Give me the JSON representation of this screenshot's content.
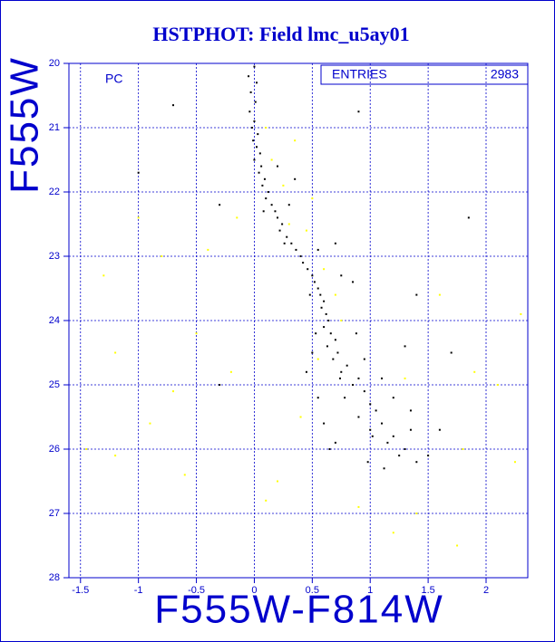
{
  "chart_data": {
    "type": "scatter",
    "title": "HSTPHOT: Field lmc_u5ay01",
    "x_label": "F555W-F814W",
    "y_label": "F555W",
    "annotation": "PC",
    "stats_box": {
      "label": "ENTRIES",
      "value": 2983
    },
    "xlim": [
      -1.6,
      2.36
    ],
    "ylim": [
      20,
      28
    ],
    "y_inverted": true,
    "grid": true,
    "xticks": [
      -1.5,
      -1,
      -0.5,
      0,
      0.5,
      1,
      1.5,
      2
    ],
    "yticks": [
      20,
      21,
      22,
      23,
      24,
      25,
      26,
      27,
      28
    ],
    "series": [
      {
        "color": "#ffff00",
        "x": [
          0.1,
          0.15,
          0.25,
          0.3,
          0.45,
          0.6,
          0.7,
          0.75,
          0.55,
          -1.0,
          -1.3,
          -1.2,
          -0.9,
          -0.6,
          -1.45,
          -0.4,
          -0.2,
          0.2,
          0.9,
          1.3,
          1.6,
          1.8,
          2.1,
          2.3,
          1.75,
          1.4,
          -0.5,
          -0.8,
          0.4,
          0.1,
          2.25,
          1.9,
          -1.2,
          0.35,
          0.5,
          -0.15,
          1.2,
          -0.7
        ],
        "values": [
          21.0,
          21.5,
          21.9,
          22.5,
          22.6,
          23.2,
          23.6,
          24.0,
          24.6,
          22.4,
          23.3,
          24.5,
          25.6,
          26.4,
          26.0,
          22.9,
          24.8,
          26.5,
          26.9,
          24.9,
          23.6,
          26.0,
          25.0,
          23.9,
          27.5,
          27.0,
          24.2,
          23.0,
          25.5,
          26.8,
          26.2,
          24.8,
          26.1,
          21.2,
          22.1,
          22.4,
          27.3,
          25.1
        ]
      },
      {
        "color": "#000000",
        "x": [
          0.0,
          -0.05,
          0.02,
          -0.03,
          0.01,
          -0.04,
          0.0,
          -0.02,
          0.03,
          -0.01,
          0.02,
          0.05,
          0.0,
          0.06,
          0.04,
          0.09,
          0.07,
          0.12,
          0.1,
          0.15,
          0.18,
          0.2,
          0.24,
          0.22,
          0.28,
          0.32,
          0.36,
          0.4,
          0.42,
          0.46,
          0.5,
          0.52,
          0.55,
          0.57,
          0.6,
          0.58,
          0.62,
          0.64,
          0.6,
          0.66,
          0.7,
          0.63,
          0.72,
          0.68,
          0.8,
          0.75,
          0.9,
          0.85,
          0.95,
          0.78,
          1.0,
          1.05,
          0.9,
          1.1,
          1.0,
          1.2,
          1.15,
          1.3,
          1.25,
          1.4,
          0.55,
          0.6,
          0.7,
          1.5,
          1.35,
          0.5,
          0.45,
          1.6,
          -0.7,
          1.85,
          0.2,
          -0.3,
          0.85,
          1.4,
          1.3,
          1.7,
          0.35,
          0.3,
          0.55,
          0.7,
          0.75,
          0.95,
          0.88,
          1.1,
          1.2,
          1.35,
          0.65,
          0.98,
          -0.3,
          -1.0,
          0.9,
          0.08,
          0.26,
          0.48,
          0.53,
          0.74,
          1.02,
          1.12
        ],
        "values": [
          20.05,
          20.2,
          20.3,
          20.45,
          20.6,
          20.75,
          20.9,
          21.0,
          21.1,
          21.2,
          21.3,
          21.4,
          21.5,
          21.6,
          21.7,
          21.8,
          21.9,
          22.0,
          22.1,
          22.2,
          22.3,
          22.4,
          22.5,
          22.6,
          22.7,
          22.8,
          22.9,
          23.0,
          23.1,
          23.2,
          23.3,
          23.4,
          23.5,
          23.6,
          23.7,
          23.8,
          23.9,
          24.0,
          24.1,
          24.2,
          24.3,
          24.4,
          24.5,
          24.6,
          24.7,
          24.8,
          24.9,
          25.0,
          25.1,
          25.2,
          25.3,
          25.4,
          25.5,
          25.6,
          25.7,
          25.8,
          25.9,
          26.0,
          26.1,
          26.2,
          25.2,
          25.6,
          25.9,
          26.1,
          25.7,
          24.5,
          24.8,
          25.7,
          20.65,
          22.4,
          21.6,
          22.2,
          23.4,
          23.6,
          24.4,
          24.5,
          21.8,
          22.2,
          22.9,
          22.8,
          23.3,
          24.6,
          24.2,
          24.9,
          25.2,
          25.4,
          26.0,
          26.2,
          25.0,
          21.7,
          20.75,
          22.3,
          22.8,
          23.6,
          24.2,
          24.9,
          25.8,
          26.3
        ]
      }
    ]
  }
}
